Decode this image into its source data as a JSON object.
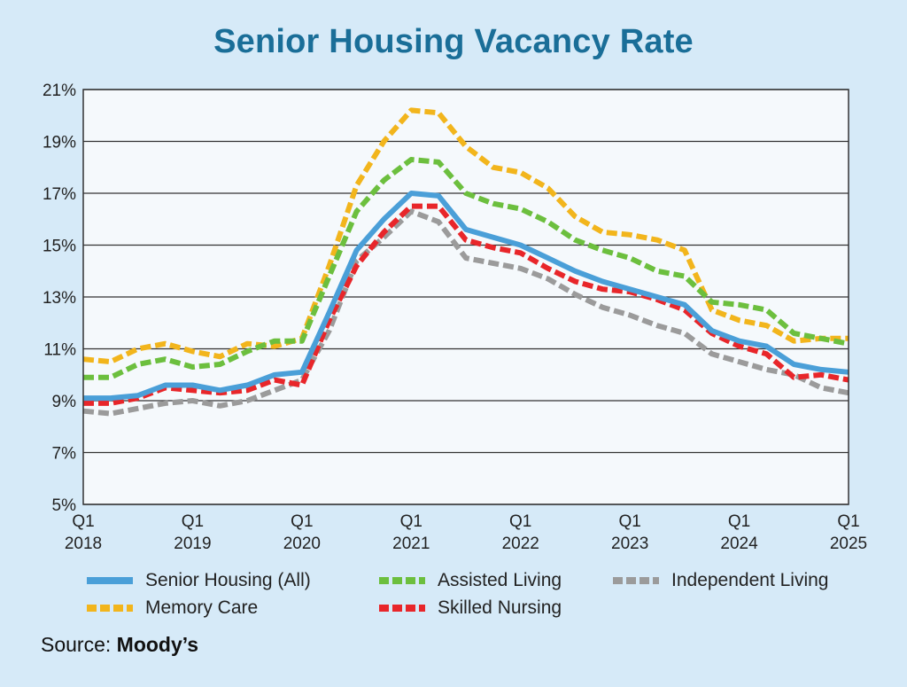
{
  "title": "Senior Housing Vacancy Rate",
  "source": {
    "prefix": "Source:",
    "name": "Moody’s"
  },
  "colors": {
    "background": "#d6eaf8",
    "plot_background": "#f5f9fc",
    "title": "#1a6e98",
    "grid": "#333333"
  },
  "chart_data": {
    "type": "line",
    "title": "Senior Housing Vacancy Rate",
    "xlabel": "",
    "ylabel": "",
    "ylim": [
      5,
      21
    ],
    "yticks": [
      "5%",
      "7%",
      "9%",
      "11%",
      "13%",
      "15%",
      "17%",
      "19%",
      "21%"
    ],
    "grid": true,
    "legend_position": "bottom",
    "x_tick_labels": [
      {
        "q": "Q1",
        "y": "2018"
      },
      {
        "q": "Q1",
        "y": "2019"
      },
      {
        "q": "Q1",
        "y": "2020"
      },
      {
        "q": "Q1",
        "y": "2021"
      },
      {
        "q": "Q1",
        "y": "2022"
      },
      {
        "q": "Q1",
        "y": "2023"
      },
      {
        "q": "Q1",
        "y": "2024"
      },
      {
        "q": "Q1",
        "y": "2025"
      }
    ],
    "x": [
      "2018Q1",
      "2018Q2",
      "2018Q3",
      "2018Q4",
      "2019Q1",
      "2019Q2",
      "2019Q3",
      "2019Q4",
      "2020Q1",
      "2020Q2",
      "2020Q3",
      "2020Q4",
      "2021Q1",
      "2021Q2",
      "2021Q3",
      "2021Q4",
      "2022Q1",
      "2022Q2",
      "2022Q3",
      "2022Q4",
      "2023Q1",
      "2023Q2",
      "2023Q3",
      "2023Q4",
      "2024Q1",
      "2024Q2",
      "2024Q3",
      "2024Q4",
      "2025Q1"
    ],
    "series": [
      {
        "name": "Senior Housing (All)",
        "color": "#4a9fd8",
        "style": "solid",
        "values": [
          9.1,
          9.1,
          9.2,
          9.6,
          9.6,
          9.4,
          9.6,
          10.0,
          10.1,
          12.4,
          14.8,
          16.0,
          17.0,
          16.9,
          15.6,
          15.3,
          15.0,
          14.5,
          14.0,
          13.6,
          13.3,
          13.0,
          12.7,
          11.7,
          11.3,
          11.1,
          10.4,
          10.2,
          10.1
        ]
      },
      {
        "name": "Assisted Living",
        "color": "#6cbf3e",
        "style": "dashed",
        "values": [
          9.9,
          9.9,
          10.4,
          10.6,
          10.3,
          10.4,
          10.9,
          11.3,
          11.3,
          13.8,
          16.3,
          17.5,
          18.3,
          18.2,
          17.0,
          16.6,
          16.4,
          15.9,
          15.2,
          14.8,
          14.5,
          14.0,
          13.8,
          12.8,
          12.7,
          12.5,
          11.6,
          11.4,
          11.2
        ]
      },
      {
        "name": "Independent Living",
        "color": "#9b9b9b",
        "style": "dashed",
        "values": [
          8.6,
          8.5,
          8.7,
          8.9,
          9.0,
          8.8,
          9.0,
          9.4,
          9.8,
          11.7,
          14.4,
          15.3,
          16.3,
          15.9,
          14.5,
          14.3,
          14.1,
          13.7,
          13.1,
          12.6,
          12.3,
          11.9,
          11.6,
          10.8,
          10.5,
          10.2,
          10.0,
          9.5,
          9.3
        ]
      },
      {
        "name": "Memory Care",
        "color": "#f2b51c",
        "style": "dashed",
        "values": [
          10.6,
          10.5,
          11.0,
          11.2,
          10.9,
          10.7,
          11.2,
          11.1,
          11.4,
          14.2,
          17.3,
          19.0,
          20.2,
          20.1,
          18.8,
          18.0,
          17.8,
          17.2,
          16.1,
          15.5,
          15.4,
          15.2,
          14.8,
          12.5,
          12.1,
          11.9,
          11.3,
          11.4,
          11.4
        ]
      },
      {
        "name": "Skilled Nursing",
        "color": "#e8262a",
        "style": "dashed",
        "values": [
          8.9,
          8.9,
          9.1,
          9.5,
          9.4,
          9.3,
          9.4,
          9.8,
          9.6,
          12.1,
          14.2,
          15.5,
          16.5,
          16.5,
          15.2,
          14.9,
          14.7,
          14.1,
          13.6,
          13.3,
          13.2,
          12.9,
          12.5,
          11.6,
          11.1,
          10.8,
          9.9,
          10.0,
          9.8
        ]
      }
    ]
  },
  "legend": [
    {
      "label": "Senior Housing (All)",
      "color": "#4a9fd8",
      "style": "solid"
    },
    {
      "label": "Assisted Living",
      "color": "#6cbf3e",
      "style": "dashed"
    },
    {
      "label": "Independent Living",
      "color": "#9b9b9b",
      "style": "dashed"
    },
    {
      "label": "Memory Care",
      "color": "#f2b51c",
      "style": "dashed"
    },
    {
      "label": "Skilled Nursing",
      "color": "#e8262a",
      "style": "dashed"
    }
  ]
}
